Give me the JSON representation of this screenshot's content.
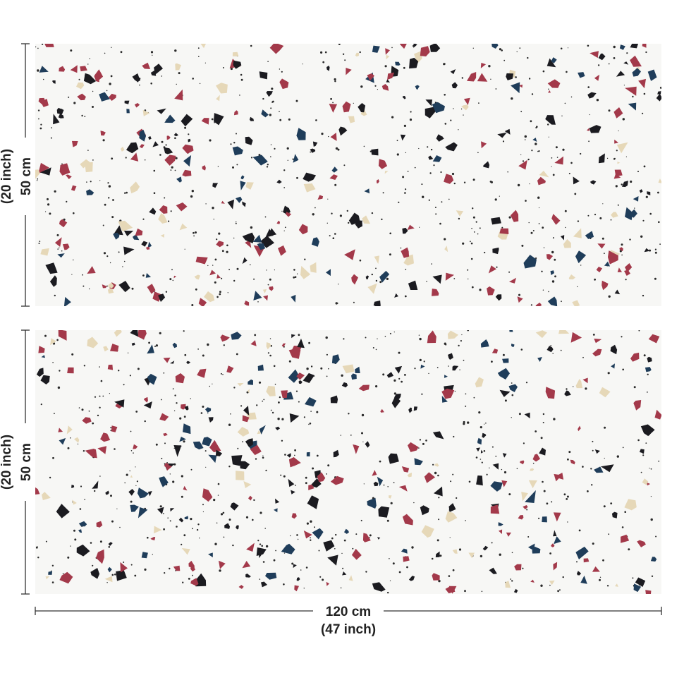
{
  "panels": [
    {
      "height_cm": "50 cm",
      "height_inch": "(20 inch)"
    },
    {
      "height_cm": "50 cm",
      "height_inch": "(20 inch)"
    }
  ],
  "width": {
    "cm": "120 cm",
    "inch": "(47 inch)"
  }
}
